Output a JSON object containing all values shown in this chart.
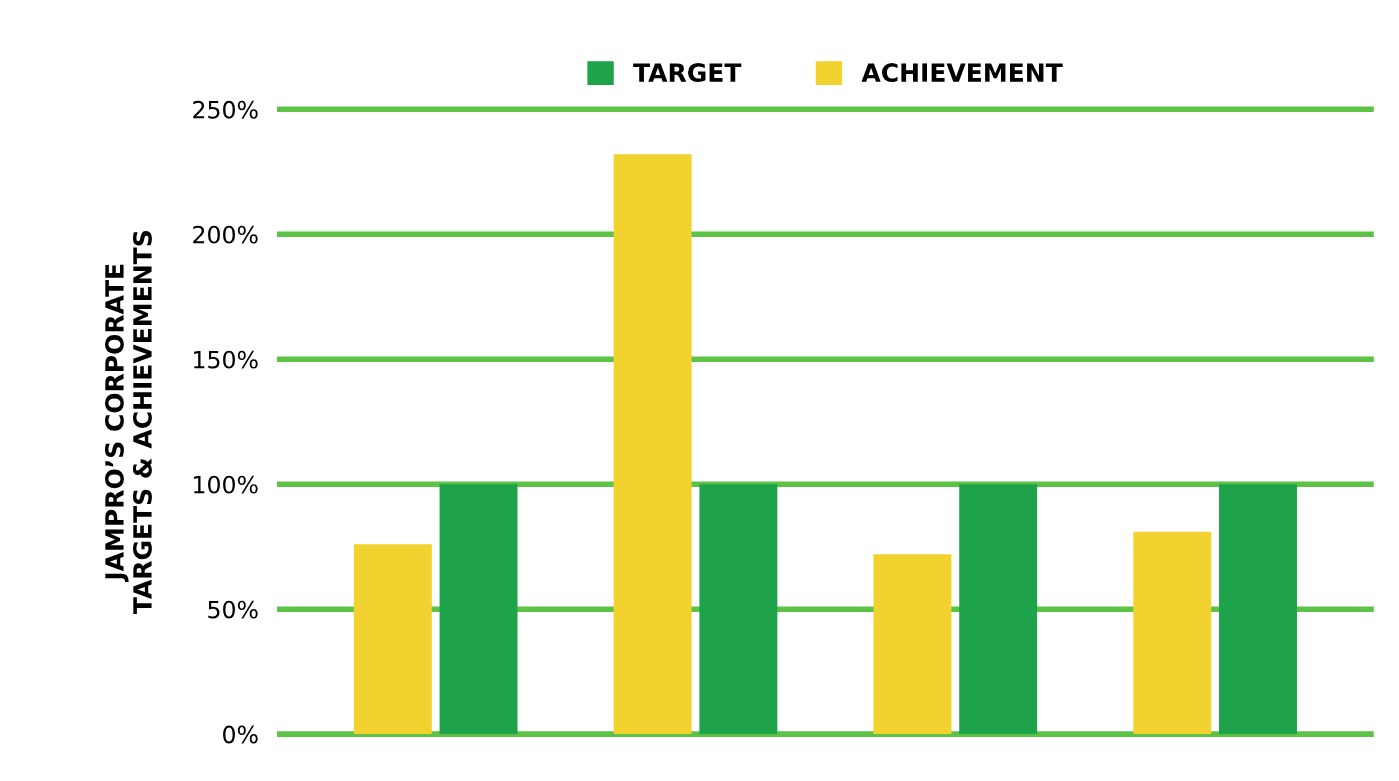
{
  "chart_data": {
    "type": "bar",
    "ylabel": "JAMPRO’S CORPORATE\nTARGETS & ACHIEVEMENTS",
    "categories": [
      null,
      null,
      null,
      null
    ],
    "series": [
      {
        "name": "TARGET",
        "color": "#1fa34a",
        "values": [
          100,
          100,
          100,
          100
        ]
      },
      {
        "name": "ACHIEVEMENT",
        "color": "#f2d22e",
        "values": [
          76,
          232,
          72,
          81
        ]
      }
    ],
    "ylim": [
      0,
      250
    ],
    "yticks": [
      {
        "value": 0,
        "label": "0%"
      },
      {
        "value": 50,
        "label": "50%"
      },
      {
        "value": 100,
        "label": "100%"
      },
      {
        "value": 150,
        "label": "150%"
      },
      {
        "value": 200,
        "label": "200%"
      },
      {
        "value": 250,
        "label": "250%"
      }
    ],
    "grid": "y",
    "legend": "top",
    "tick_labels": "y"
  }
}
